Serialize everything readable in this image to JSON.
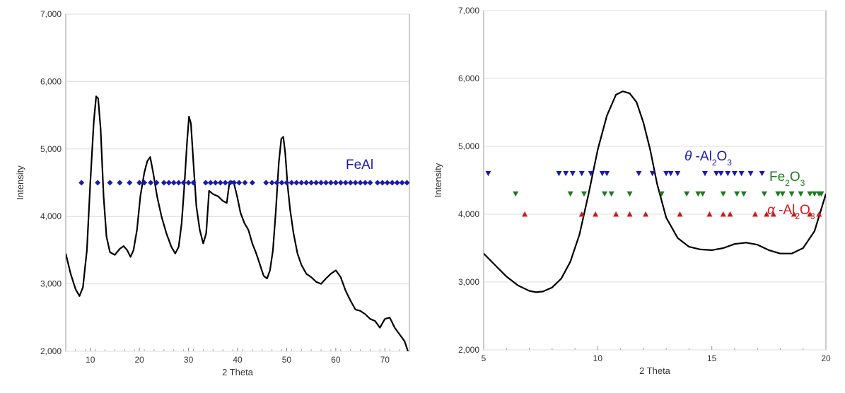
{
  "chart_data": [
    {
      "type": "line",
      "xlabel": "2 Theta",
      "ylabel": "Intensity",
      "xlim": [
        5,
        75
      ],
      "ylim": [
        2000,
        7000
      ],
      "xticks": [
        10,
        20,
        30,
        40,
        50,
        60,
        70
      ],
      "yticks": [
        2000,
        3000,
        4000,
        5000,
        6000,
        7000
      ],
      "ytick_labels": [
        "2,000",
        "3,000",
        "4,000",
        "5,000",
        "6,000",
        "7,000"
      ],
      "grid": true,
      "series": [
        {
          "color": "#000000",
          "x": [
            5,
            6,
            7,
            7.8,
            8.5,
            9.3,
            10,
            10.7,
            11.2,
            11.6,
            12.1,
            12.7,
            13.3,
            14,
            15,
            16,
            16.8,
            17.5,
            18.2,
            18.8,
            19.5,
            20.2,
            21,
            21.6,
            22.2,
            22.8,
            23.6,
            24.5,
            25.5,
            26.5,
            27.3,
            28,
            28.6,
            29.2,
            29.7,
            30.1,
            30.5,
            31,
            31.6,
            32.3,
            33,
            33.6,
            34.2,
            35,
            36,
            37,
            37.8,
            38.3,
            38.8,
            39.3,
            39.9,
            40.6,
            41.4,
            42.2,
            43,
            43.8,
            44.5,
            45.3,
            46,
            46.6,
            47.2,
            47.8,
            48.4,
            48.9,
            49.3,
            49.7,
            50.2,
            50.7,
            51.4,
            52.2,
            53,
            54,
            55,
            56,
            57,
            58,
            59,
            60,
            61,
            62,
            63,
            64,
            65,
            66,
            67,
            68,
            69,
            70,
            71,
            72,
            73,
            74,
            74.7
          ],
          "y": [
            3450,
            3150,
            2920,
            2820,
            2950,
            3500,
            4500,
            5400,
            5780,
            5750,
            5300,
            4300,
            3700,
            3470,
            3430,
            3520,
            3560,
            3500,
            3400,
            3500,
            3800,
            4300,
            4650,
            4820,
            4880,
            4650,
            4300,
            4000,
            3750,
            3550,
            3450,
            3550,
            3900,
            4500,
            5100,
            5480,
            5380,
            4800,
            4150,
            3800,
            3600,
            3750,
            4380,
            4330,
            4300,
            4230,
            4200,
            4480,
            4520,
            4480,
            4300,
            4050,
            3900,
            3800,
            3600,
            3450,
            3300,
            3120,
            3080,
            3200,
            3500,
            4100,
            4800,
            5150,
            5180,
            4950,
            4450,
            4100,
            3750,
            3450,
            3280,
            3150,
            3100,
            3030,
            3000,
            3080,
            3150,
            3200,
            3100,
            2900,
            2750,
            2620,
            2600,
            2550,
            2480,
            2450,
            2350,
            2480,
            2500,
            2350,
            2250,
            2150,
            2000
          ]
        }
      ],
      "markers": [
        {
          "name": "FeAl",
          "color": "#1a1ab0",
          "shape": "diamond",
          "y": 4500,
          "x": [
            8.2,
            11.5,
            14,
            16,
            18,
            20,
            21,
            22.3,
            23.5,
            25,
            26,
            27,
            28,
            29,
            30,
            31,
            33.5,
            34.5,
            35.5,
            36.5,
            37.5,
            38.5,
            39.3,
            40.3,
            41.5,
            43,
            45.8,
            47,
            48,
            49,
            50,
            51,
            52,
            53,
            54,
            55,
            56,
            57,
            58,
            59,
            60,
            61,
            62,
            63,
            64,
            65,
            66,
            67,
            68.5,
            69.5,
            70.5,
            71.5,
            72.5,
            73.5,
            74.5
          ]
        }
      ]
    },
    {
      "type": "line",
      "xlabel": "2 Theta",
      "ylabel": "Intensity",
      "xlim": [
        5,
        20
      ],
      "ylim": [
        2000,
        7000
      ],
      "xticks": [
        5,
        10,
        15,
        20
      ],
      "yticks": [
        2000,
        3000,
        4000,
        5000,
        6000,
        7000
      ],
      "ytick_labels": [
        "2,000",
        "3,000",
        "4,000",
        "5,000",
        "6,000",
        "7,000"
      ],
      "grid": true,
      "series": [
        {
          "color": "#000000",
          "x": [
            5,
            5.5,
            6,
            6.5,
            7,
            7.3,
            7.6,
            8,
            8.4,
            8.8,
            9.2,
            9.6,
            10,
            10.4,
            10.8,
            11.1,
            11.4,
            11.7,
            12,
            12.3,
            12.6,
            13,
            13.5,
            14,
            14.5,
            15,
            15.5,
            16,
            16.5,
            17,
            17.5,
            18,
            18.5,
            19,
            19.5,
            20
          ],
          "y": [
            3420,
            3250,
            3080,
            2950,
            2870,
            2850,
            2860,
            2920,
            3050,
            3300,
            3700,
            4300,
            4950,
            5450,
            5760,
            5810,
            5780,
            5650,
            5350,
            4950,
            4450,
            3950,
            3650,
            3520,
            3480,
            3470,
            3500,
            3560,
            3580,
            3550,
            3470,
            3420,
            3420,
            3500,
            3750,
            4300
          ]
        }
      ],
      "markers": [
        {
          "name": "θ -Al2O3",
          "color": "#1a1ab0",
          "shape": "triangle-down",
          "y": 4600,
          "x": [
            5.2,
            8.3,
            8.6,
            8.9,
            9.3,
            9.7,
            10.2,
            10.4,
            11.8,
            12.4,
            13,
            13.2,
            13.5,
            14.7,
            15.2,
            15.4,
            15.7,
            16,
            16.3,
            16.7,
            17.2
          ]
        },
        {
          "name": "Fe2O3",
          "color": "#1e7a1e",
          "shape": "triangle-down",
          "y": 4300,
          "x": [
            6.4,
            8.8,
            9.4,
            10.3,
            10.6,
            11.4,
            12.8,
            13.9,
            14.4,
            14.6,
            15.5,
            16.1,
            16.4,
            17.3,
            17.9,
            18.1,
            18.5,
            18.9,
            19.3,
            19.5,
            19.7,
            19.8
          ]
        },
        {
          "name": "α -Al2O3",
          "color": "#d01818",
          "shape": "triangle-up",
          "y": 4000,
          "x": [
            6.8,
            9.3,
            9.9,
            10.8,
            11.4,
            12.1,
            13.6,
            14.9,
            15.5,
            15.8,
            16.9,
            17.4,
            17.7,
            18.6,
            19.3,
            19.7
          ]
        }
      ]
    }
  ]
}
